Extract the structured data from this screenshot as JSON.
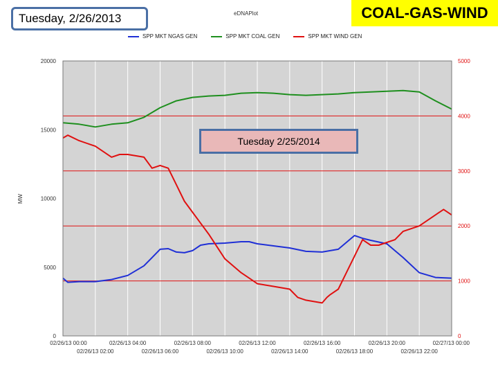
{
  "header": {
    "date_label": "Tuesday, 2/26/2013",
    "title": "COAL-GAS-WIND",
    "app_title": "eDNAPlot",
    "annotation": "Tuesday 2/25/2014"
  },
  "colors": {
    "plot_background": "#d4d4d4",
    "gas": "#1f2fd6",
    "coal": "#1e8f1e",
    "wind": "#e01010",
    "right_axis": "#e01010",
    "title_background": "#ffff00",
    "box_border": "#4a6fa5",
    "note_background": "#e9b8b8"
  },
  "chart_data": {
    "type": "line",
    "title": "",
    "xlabel": "",
    "ylabel": "MW",
    "ylim_left": [
      0,
      20000
    ],
    "ylim_right": [
      0,
      5000
    ],
    "left_ticks": [
      "20000",
      "15000",
      "10000",
      "5000",
      "0"
    ],
    "right_ticks": [
      "5000",
      "4000",
      "3000",
      "2000",
      "1000",
      "0"
    ],
    "x_range_hours": [
      0,
      24
    ],
    "x_ticks_upper": [
      "02/26/13 00:00",
      "02/26/13 04:00",
      "02/26/13 08:00",
      "02/26/13 12:00",
      "02/26/13 16:00",
      "02/26/13 20:00",
      "02/27/13 00:00"
    ],
    "x_ticks_lower": [
      "02/26/13 02:00",
      "02/26/13 06:00",
      "02/26/13 10:00",
      "02/26/13 14:00",
      "02/26/13 18:00",
      "02/26/13 22:00"
    ],
    "grid": true,
    "legend_position": "top",
    "series": [
      {
        "name": "SPP MKT NGAS GEN",
        "axis": "left",
        "color": "#1f2fd6",
        "x": [
          0,
          0.3,
          1,
          2,
          3,
          4,
          5,
          5.5,
          6,
          6.5,
          7,
          7.5,
          8,
          8.5,
          9,
          10,
          11,
          11.5,
          12,
          13,
          14,
          15,
          16,
          17,
          17.5,
          18,
          18.5,
          19,
          20,
          21,
          22,
          23,
          24
        ],
        "values": [
          4200,
          3900,
          3950,
          3950,
          4100,
          4400,
          5100,
          5700,
          6300,
          6350,
          6100,
          6050,
          6200,
          6600,
          6700,
          6750,
          6850,
          6850,
          6700,
          6550,
          6400,
          6150,
          6100,
          6300,
          6800,
          7300,
          7100,
          6950,
          6700,
          5700,
          4600,
          4250,
          4200
        ]
      },
      {
        "name": "SPP MKT COAL GEN",
        "axis": "left",
        "color": "#1e8f1e",
        "x": [
          0,
          1,
          2,
          3,
          4,
          5,
          6,
          7,
          8,
          9,
          10,
          11,
          12,
          13,
          14,
          15,
          16,
          17,
          18,
          19,
          20,
          21,
          22,
          23,
          24
        ],
        "values": [
          15500,
          15400,
          15200,
          15400,
          15500,
          15900,
          16600,
          17100,
          17350,
          17450,
          17500,
          17650,
          17700,
          17650,
          17550,
          17500,
          17550,
          17600,
          17700,
          17750,
          17800,
          17850,
          17750,
          17100,
          16500
        ]
      },
      {
        "name": "SPP MKT WIND GEN",
        "axis": "right",
        "color": "#e01010",
        "x": [
          0,
          0.3,
          1,
          2,
          3,
          3.5,
          4,
          5,
          5.5,
          6,
          6.5,
          7,
          7.5,
          8,
          8.5,
          9,
          10,
          11,
          11.5,
          12,
          13,
          14,
          14.5,
          15,
          16,
          16.3,
          16.5,
          17,
          17.5,
          18,
          18.5,
          19,
          19.5,
          20,
          20.5,
          21,
          22,
          23,
          23.5,
          24
        ],
        "values": [
          3600,
          3650,
          3550,
          3450,
          3250,
          3300,
          3300,
          3250,
          3050,
          3100,
          3050,
          2750,
          2450,
          2250,
          2050,
          1850,
          1400,
          1150,
          1050,
          950,
          900,
          850,
          700,
          650,
          600,
          700,
          750,
          850,
          1150,
          1450,
          1750,
          1650,
          1650,
          1700,
          1750,
          1900,
          2000,
          2200,
          2300,
          2200
        ]
      }
    ]
  }
}
